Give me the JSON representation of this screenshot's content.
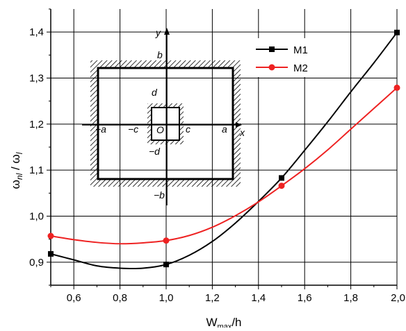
{
  "chart_data": {
    "type": "line",
    "title": "",
    "xlabel": "W",
    "xlabel_sub": "max",
    "xlabel_suffix": "/h",
    "ylabel": "ω",
    "ylabel_sub": "nl",
    "ylabel_mid": " / ω",
    "ylabel_sub2": "l",
    "xlim": [
      0.5,
      2.0
    ],
    "ylim": [
      0.85,
      1.45
    ],
    "xticks": [
      0.6,
      0.8,
      1.0,
      1.2,
      1.4,
      1.6,
      1.8,
      2.0
    ],
    "xtick_labels": [
      "0,6",
      "0,8",
      "1,0",
      "1,2",
      "1,4",
      "1,6",
      "1,8",
      "2,0"
    ],
    "yticks": [
      0.9,
      1.0,
      1.1,
      1.2,
      1.3,
      1.4
    ],
    "ytick_labels": [
      "0,9",
      "1,0",
      "1,1",
      "1,2",
      "1,3",
      "1,4"
    ],
    "grid": true,
    "legend_position": "top-right",
    "series": [
      {
        "name": "M1",
        "color": "#000000",
        "marker": "square",
        "x": [
          0.5,
          1.0,
          1.5,
          2.0
        ],
        "y": [
          0.918,
          0.895,
          1.083,
          1.399
        ],
        "curve": [
          [
            0.5,
            0.918
          ],
          [
            0.6,
            0.905
          ],
          [
            0.7,
            0.892
          ],
          [
            0.8,
            0.887
          ],
          [
            0.9,
            0.887
          ],
          [
            1.0,
            0.895
          ],
          [
            1.1,
            0.915
          ],
          [
            1.2,
            0.945
          ],
          [
            1.3,
            0.985
          ],
          [
            1.4,
            1.032
          ],
          [
            1.5,
            1.083
          ],
          [
            1.6,
            1.143
          ],
          [
            1.7,
            1.205
          ],
          [
            1.8,
            1.27
          ],
          [
            1.9,
            1.333
          ],
          [
            2.0,
            1.399
          ]
        ]
      },
      {
        "name": "M2",
        "color": "#ee2222",
        "marker": "circle",
        "x": [
          0.5,
          1.0,
          1.5,
          2.0
        ],
        "y": [
          0.957,
          0.947,
          1.066,
          1.279
        ],
        "curve": [
          [
            0.5,
            0.957
          ],
          [
            0.6,
            0.949
          ],
          [
            0.7,
            0.943
          ],
          [
            0.8,
            0.94
          ],
          [
            0.9,
            0.942
          ],
          [
            1.0,
            0.947
          ],
          [
            1.1,
            0.958
          ],
          [
            1.2,
            0.976
          ],
          [
            1.3,
            1.001
          ],
          [
            1.4,
            1.031
          ],
          [
            1.5,
            1.066
          ],
          [
            1.6,
            1.103
          ],
          [
            1.7,
            1.144
          ],
          [
            1.8,
            1.189
          ],
          [
            1.9,
            1.234
          ],
          [
            2.0,
            1.279
          ]
        ]
      }
    ],
    "inset": {
      "axis_x_label": "x",
      "axis_y_label": "y",
      "origin_label": "O",
      "labels": {
        "a_pos": "a",
        "a_neg": "−a",
        "b_pos": "b",
        "b_neg": "−b",
        "c_pos": "c",
        "c_neg": "−c",
        "d_pos": "d",
        "d_neg": "−d"
      }
    }
  }
}
